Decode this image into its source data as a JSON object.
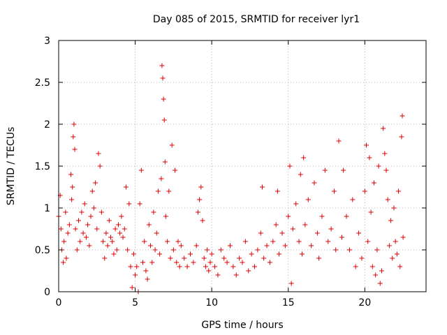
{
  "chart_data": {
    "type": "scatter",
    "title": "Day 085 of 2015, SRMTID for receiver lyr1",
    "xlabel": "GPS time / hours",
    "ylabel": "SRMTID / TECUs",
    "xlim": [
      0,
      24
    ],
    "ylim": [
      0,
      3
    ],
    "xticks": [
      0,
      5,
      10,
      15,
      20
    ],
    "xtick_labels": [
      "0",
      "5",
      "10",
      "15",
      "20"
    ],
    "yticks": [
      0,
      0.5,
      1,
      1.5,
      2,
      2.5,
      3
    ],
    "ytick_labels": [
      "0",
      "0.5",
      "1",
      "1.5",
      "2",
      "2.5",
      "3"
    ],
    "grid": true,
    "marker": "plus",
    "series": [
      {
        "name": "SRMTID",
        "color": "#e00000",
        "points": [
          [
            0.0,
            0.9
          ],
          [
            0.1,
            1.15
          ],
          [
            0.15,
            0.75
          ],
          [
            0.2,
            0.5
          ],
          [
            0.3,
            0.35
          ],
          [
            0.35,
            0.6
          ],
          [
            0.45,
            0.95
          ],
          [
            0.5,
            0.4
          ],
          [
            0.6,
            0.7
          ],
          [
            0.7,
            0.8
          ],
          [
            0.8,
            1.4
          ],
          [
            0.85,
            1.1
          ],
          [
            0.9,
            1.25
          ],
          [
            0.95,
            1.85
          ],
          [
            1.0,
            2.0
          ],
          [
            1.05,
            1.7
          ],
          [
            1.1,
            0.75
          ],
          [
            1.2,
            0.5
          ],
          [
            1.3,
            0.85
          ],
          [
            1.4,
            0.6
          ],
          [
            1.5,
            0.95
          ],
          [
            1.6,
            0.7
          ],
          [
            1.7,
            1.05
          ],
          [
            1.8,
            0.65
          ],
          [
            1.9,
            0.8
          ],
          [
            2.0,
            0.55
          ],
          [
            2.1,
            0.9
          ],
          [
            2.2,
            1.2
          ],
          [
            2.3,
            1.0
          ],
          [
            2.4,
            1.3
          ],
          [
            2.5,
            0.75
          ],
          [
            2.6,
            1.65
          ],
          [
            2.7,
            1.5
          ],
          [
            2.8,
            0.95
          ],
          [
            2.9,
            0.6
          ],
          [
            3.0,
            0.4
          ],
          [
            3.1,
            0.7
          ],
          [
            3.2,
            0.55
          ],
          [
            3.3,
            0.85
          ],
          [
            3.4,
            0.65
          ],
          [
            3.5,
            0.6
          ],
          [
            3.6,
            0.45
          ],
          [
            3.7,
            0.75
          ],
          [
            3.8,
            0.5
          ],
          [
            3.9,
            0.8
          ],
          [
            4.0,
            0.7
          ],
          [
            4.1,
            0.9
          ],
          [
            4.2,
            0.65
          ],
          [
            4.3,
            0.75
          ],
          [
            4.4,
            1.25
          ],
          [
            4.5,
            0.5
          ],
          [
            4.6,
            1.05
          ],
          [
            4.7,
            0.3
          ],
          [
            4.8,
            0.05
          ],
          [
            4.9,
            0.45
          ],
          [
            5.0,
            0.2
          ],
          [
            5.1,
            0.3
          ],
          [
            5.2,
            0.0
          ],
          [
            5.3,
            1.05
          ],
          [
            5.4,
            1.45
          ],
          [
            5.5,
            0.35
          ],
          [
            5.6,
            0.6
          ],
          [
            5.7,
            0.25
          ],
          [
            5.8,
            0.15
          ],
          [
            5.9,
            0.8
          ],
          [
            6.0,
            0.55
          ],
          [
            6.1,
            0.35
          ],
          [
            6.2,
            0.95
          ],
          [
            6.3,
            0.5
          ],
          [
            6.4,
            0.7
          ],
          [
            6.5,
            1.2
          ],
          [
            6.6,
            0.45
          ],
          [
            6.7,
            1.35
          ],
          [
            6.75,
            2.7
          ],
          [
            6.8,
            2.55
          ],
          [
            6.85,
            2.3
          ],
          [
            6.9,
            2.05
          ],
          [
            6.95,
            1.55
          ],
          [
            7.0,
            0.9
          ],
          [
            7.1,
            0.6
          ],
          [
            7.2,
            1.2
          ],
          [
            7.3,
            0.4
          ],
          [
            7.4,
            1.75
          ],
          [
            7.5,
            0.5
          ],
          [
            7.6,
            1.45
          ],
          [
            7.7,
            0.35
          ],
          [
            7.8,
            0.6
          ],
          [
            7.9,
            0.3
          ],
          [
            8.0,
            0.55
          ],
          [
            8.2,
            0.4
          ],
          [
            8.4,
            0.3
          ],
          [
            8.6,
            0.45
          ],
          [
            8.8,
            0.35
          ],
          [
            9.0,
            0.55
          ],
          [
            9.1,
            0.95
          ],
          [
            9.2,
            1.1
          ],
          [
            9.3,
            1.25
          ],
          [
            9.4,
            0.85
          ],
          [
            9.5,
            0.4
          ],
          [
            9.6,
            0.3
          ],
          [
            9.7,
            0.5
          ],
          [
            9.8,
            0.25
          ],
          [
            9.9,
            0.35
          ],
          [
            10.0,
            0.45
          ],
          [
            10.2,
            0.3
          ],
          [
            10.4,
            0.2
          ],
          [
            10.6,
            0.5
          ],
          [
            10.8,
            0.4
          ],
          [
            11.0,
            0.35
          ],
          [
            11.2,
            0.55
          ],
          [
            11.4,
            0.3
          ],
          [
            11.6,
            0.2
          ],
          [
            11.8,
            0.4
          ],
          [
            12.0,
            0.35
          ],
          [
            12.2,
            0.6
          ],
          [
            12.4,
            0.25
          ],
          [
            12.6,
            0.45
          ],
          [
            12.8,
            0.3
          ],
          [
            13.0,
            0.5
          ],
          [
            13.2,
            0.7
          ],
          [
            13.3,
            1.25
          ],
          [
            13.4,
            0.4
          ],
          [
            13.6,
            0.55
          ],
          [
            13.8,
            0.35
          ],
          [
            14.0,
            0.6
          ],
          [
            14.2,
            0.8
          ],
          [
            14.3,
            1.2
          ],
          [
            14.4,
            0.45
          ],
          [
            14.6,
            0.7
          ],
          [
            14.8,
            0.55
          ],
          [
            15.0,
            0.9
          ],
          [
            15.1,
            1.5
          ],
          [
            15.2,
            0.1
          ],
          [
            15.3,
            0.75
          ],
          [
            15.5,
            1.05
          ],
          [
            15.7,
            0.6
          ],
          [
            15.8,
            1.4
          ],
          [
            15.9,
            0.45
          ],
          [
            16.0,
            1.6
          ],
          [
            16.1,
            0.8
          ],
          [
            16.3,
            1.1
          ],
          [
            16.5,
            0.55
          ],
          [
            16.7,
            1.3
          ],
          [
            16.9,
            0.7
          ],
          [
            17.0,
            0.4
          ],
          [
            17.2,
            0.9
          ],
          [
            17.4,
            1.45
          ],
          [
            17.6,
            0.6
          ],
          [
            17.8,
            0.75
          ],
          [
            18.0,
            1.2
          ],
          [
            18.1,
            0.5
          ],
          [
            18.3,
            1.8
          ],
          [
            18.5,
            0.65
          ],
          [
            18.6,
            1.45
          ],
          [
            18.8,
            0.9
          ],
          [
            19.0,
            0.5
          ],
          [
            19.2,
            1.1
          ],
          [
            19.4,
            0.3
          ],
          [
            19.6,
            0.7
          ],
          [
            19.8,
            0.4
          ],
          [
            20.0,
            1.2
          ],
          [
            20.1,
            1.75
          ],
          [
            20.2,
            0.6
          ],
          [
            20.3,
            1.6
          ],
          [
            20.4,
            0.95
          ],
          [
            20.5,
            0.3
          ],
          [
            20.6,
            1.3
          ],
          [
            20.7,
            0.2
          ],
          [
            20.8,
            0.5
          ],
          [
            20.9,
            1.5
          ],
          [
            21.0,
            0.1
          ],
          [
            21.1,
            0.25
          ],
          [
            21.2,
            1.95
          ],
          [
            21.3,
            1.65
          ],
          [
            21.4,
            1.45
          ],
          [
            21.5,
            1.1
          ],
          [
            21.6,
            0.55
          ],
          [
            21.7,
            0.85
          ],
          [
            21.8,
            0.4
          ],
          [
            21.9,
            1.0
          ],
          [
            22.0,
            0.6
          ],
          [
            22.1,
            0.45
          ],
          [
            22.2,
            1.2
          ],
          [
            22.3,
            0.3
          ],
          [
            22.4,
            1.85
          ],
          [
            22.45,
            2.1
          ],
          [
            22.5,
            0.65
          ]
        ]
      }
    ]
  }
}
